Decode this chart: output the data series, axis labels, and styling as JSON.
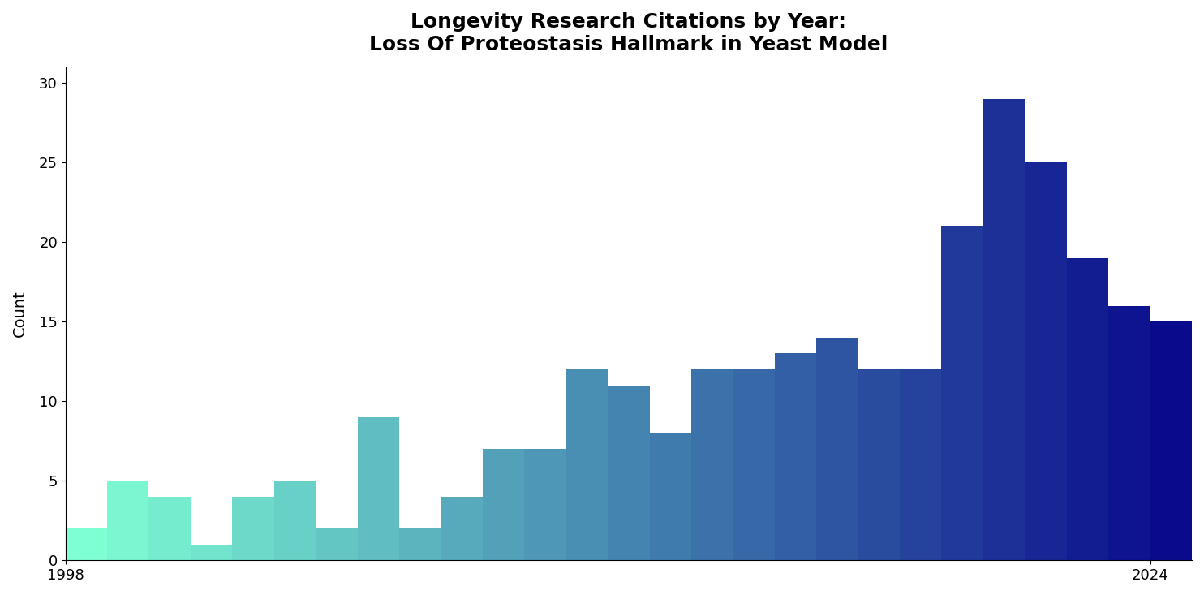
{
  "title_line1": "Longevity Research Citations by Year:",
  "title_line2": "Loss Of Proteostasis Hallmark in Yeast Model",
  "ylabel": "Count",
  "years": [
    1998,
    1999,
    2000,
    2001,
    2002,
    2003,
    2004,
    2005,
    2006,
    2007,
    2008,
    2009,
    2010,
    2011,
    2012,
    2013,
    2014,
    2015,
    2016,
    2017,
    2018,
    2019,
    2020,
    2021,
    2022,
    2023,
    2024
  ],
  "values": [
    2,
    5,
    4,
    1,
    4,
    5,
    2,
    9,
    2,
    4,
    7,
    7,
    12,
    11,
    8,
    12,
    12,
    13,
    14,
    12,
    12,
    21,
    29,
    25,
    19,
    16,
    15
  ],
  "ylim": [
    0,
    31
  ],
  "yticks": [
    0,
    5,
    10,
    15,
    20,
    25,
    30
  ],
  "color_start": "#7FFFD4",
  "color_end": "#0A0A8C",
  "background_color": "#ffffff",
  "title_fontsize": 18,
  "axis_label_fontsize": 14,
  "tick_fontsize": 13,
  "bar_width": 1.0
}
